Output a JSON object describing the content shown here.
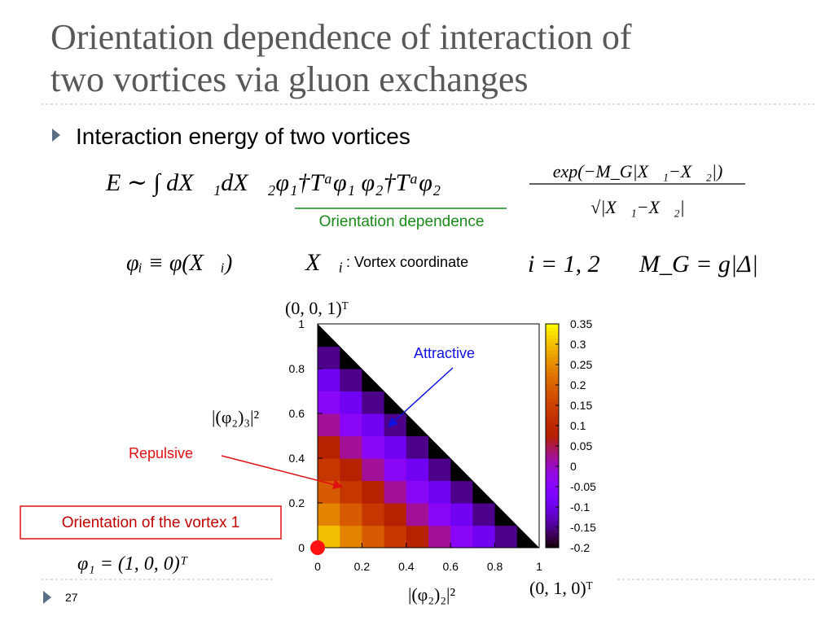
{
  "slide": {
    "title_lines": [
      "Orientation dependence of interaction of",
      "two vortices via gluon exchanges"
    ],
    "bullet": "Interaction energy of two vortices",
    "equation": "E ∼ ∫ dX⃗₁dX⃗₂φ₁†Tᵃφ₁  φ₂†Tᵃφ₂",
    "fraction_numerator": "exp(−M_G|X⃗₁−X⃗₂|)",
    "fraction_denominator": "√|X⃗₁−X⃗₂|",
    "orientation_label": "Orientation dependence",
    "phi_definition": "φᵢ ≡ φ(X⃗ᵢ)",
    "coordinate_symbol": "X⃗ᵢ",
    "coordinate_note": ": Vortex coordinate",
    "index_range": "i = 1, 2",
    "mass_definition": "M_G = g|Δ|",
    "page_number": "27"
  },
  "chart_data": {
    "type": "heatmap",
    "xlabel": "|(φ₂)₂|²",
    "ylabel": "|(φ₂)₃|²",
    "top_corner_label": "(0, 0, 1)ᵀ",
    "right_corner_label": "(0, 1, 0)ᵀ",
    "origin_label": "φ₁ = (1, 0, 0)ᵀ",
    "origin_box_label": "Orientation of the vortex 1",
    "annotations": [
      "Attractive",
      "Repulsive"
    ],
    "xbins": [
      0,
      0.1,
      0.2,
      0.3,
      0.4,
      0.5,
      0.6,
      0.7,
      0.8,
      0.9,
      1
    ],
    "ybins": [
      0,
      0.1,
      0.2,
      0.3,
      0.4,
      0.5,
      0.6,
      0.7,
      0.8,
      0.9,
      1
    ],
    "z": [
      [
        0.3,
        0.24,
        0.19,
        0.13,
        0.08,
        0.02,
        -0.04,
        -0.09,
        -0.15,
        -0.2
      ],
      [
        0.24,
        0.19,
        0.13,
        0.08,
        0.02,
        -0.04,
        -0.09,
        -0.15,
        -0.2,
        null
      ],
      [
        0.19,
        0.13,
        0.08,
        0.02,
        -0.04,
        -0.09,
        -0.15,
        -0.2,
        null,
        null
      ],
      [
        0.13,
        0.08,
        0.02,
        -0.04,
        -0.09,
        -0.15,
        -0.2,
        null,
        null,
        null
      ],
      [
        0.08,
        0.02,
        -0.04,
        -0.09,
        -0.15,
        -0.2,
        null,
        null,
        null,
        null
      ],
      [
        0.02,
        -0.04,
        -0.09,
        -0.15,
        -0.2,
        null,
        null,
        null,
        null,
        null
      ],
      [
        -0.04,
        -0.09,
        -0.15,
        -0.2,
        null,
        null,
        null,
        null,
        null,
        null
      ],
      [
        -0.09,
        -0.15,
        -0.2,
        null,
        null,
        null,
        null,
        null,
        null,
        null
      ],
      [
        -0.15,
        -0.2,
        null,
        null,
        null,
        null,
        null,
        null,
        null,
        null
      ],
      [
        -0.2,
        null,
        null,
        null,
        null,
        null,
        null,
        null,
        null,
        null
      ]
    ],
    "xlim": [
      0,
      1
    ],
    "ylim": [
      0,
      1
    ],
    "xticks": [
      0,
      0.2,
      0.4,
      0.6,
      0.8,
      1
    ],
    "yticks": [
      0,
      0.2,
      0.4,
      0.6,
      0.8,
      1
    ],
    "clim": [
      -0.2,
      0.35
    ],
    "cticks": [
      -0.2,
      -0.15,
      -0.1,
      -0.05,
      0,
      0.05,
      0.1,
      0.15,
      0.2,
      0.25,
      0.3,
      0.35
    ]
  }
}
